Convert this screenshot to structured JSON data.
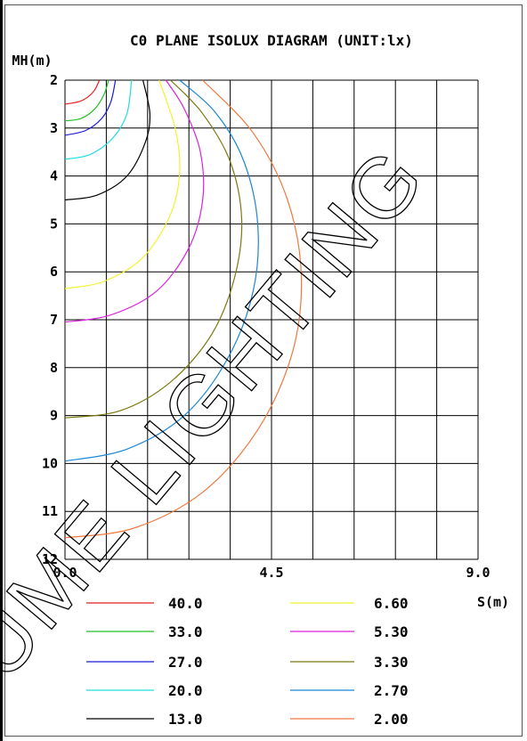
{
  "chart_data": {
    "type": "line",
    "title": "C0 PLANE ISOLUX DIAGRAM (UNIT:lx)",
    "ylabel": "MH(m)",
    "xlabel": "S(m)",
    "x_ticks": [
      "0.0",
      "4.5",
      "9.0"
    ],
    "y_ticks": [
      "2",
      "3",
      "4",
      "5",
      "6",
      "7",
      "8",
      "9",
      "10",
      "11",
      "12"
    ],
    "xlim": [
      0,
      9
    ],
    "ylim": [
      2,
      12
    ],
    "y_inverted": true,
    "grid": true,
    "legend_position": "bottom",
    "series": [
      {
        "name": "40.0",
        "color": "#e41f1f",
        "points": [
          [
            0.0,
            2.5
          ],
          [
            0.3,
            2.45
          ],
          [
            0.5,
            2.35
          ],
          [
            0.65,
            2.2
          ],
          [
            0.75,
            2.0
          ]
        ]
      },
      {
        "name": "33.0",
        "color": "#22c022",
        "points": [
          [
            0.0,
            2.85
          ],
          [
            0.35,
            2.8
          ],
          [
            0.65,
            2.6
          ],
          [
            0.85,
            2.3
          ],
          [
            0.95,
            2.0
          ]
        ]
      },
      {
        "name": "27.0",
        "color": "#1a1ad6",
        "points": [
          [
            0.0,
            3.15
          ],
          [
            0.45,
            3.05
          ],
          [
            0.8,
            2.8
          ],
          [
            1.0,
            2.45
          ],
          [
            1.1,
            2.0
          ]
        ]
      },
      {
        "name": "20.0",
        "color": "#22dede",
        "points": [
          [
            0.0,
            3.65
          ],
          [
            0.55,
            3.55
          ],
          [
            1.05,
            3.2
          ],
          [
            1.35,
            2.7
          ],
          [
            1.45,
            2.0
          ]
        ]
      },
      {
        "name": "13.0",
        "color": "#000000",
        "points": [
          [
            0.0,
            4.5
          ],
          [
            0.7,
            4.4
          ],
          [
            1.35,
            4.0
          ],
          [
            1.75,
            3.3
          ],
          [
            1.85,
            2.7
          ],
          [
            1.7,
            2.0
          ]
        ]
      },
      {
        "name": "6.60",
        "color": "#f2f233",
        "points": [
          [
            0.0,
            6.35
          ],
          [
            0.85,
            6.2
          ],
          [
            1.7,
            5.7
          ],
          [
            2.3,
            4.8
          ],
          [
            2.5,
            3.9
          ],
          [
            2.4,
            3.0
          ],
          [
            2.05,
            2.0
          ]
        ]
      },
      {
        "name": "5.30",
        "color": "#dc22dc",
        "points": [
          [
            0.0,
            7.05
          ],
          [
            1.0,
            6.9
          ],
          [
            2.0,
            6.4
          ],
          [
            2.7,
            5.5
          ],
          [
            3.0,
            4.5
          ],
          [
            2.95,
            3.5
          ],
          [
            2.6,
            2.6
          ],
          [
            2.2,
            2.0
          ]
        ]
      },
      {
        "name": "3.30",
        "color": "#7a7a10",
        "points": [
          [
            0.0,
            9.05
          ],
          [
            1.2,
            8.9
          ],
          [
            2.3,
            8.3
          ],
          [
            3.2,
            7.3
          ],
          [
            3.7,
            6.1
          ],
          [
            3.85,
            4.9
          ],
          [
            3.6,
            3.7
          ],
          [
            3.0,
            2.7
          ],
          [
            2.3,
            2.0
          ]
        ]
      },
      {
        "name": "2.70",
        "color": "#1a86d6",
        "points": [
          [
            0.0,
            9.95
          ],
          [
            1.35,
            9.7
          ],
          [
            2.6,
            9.0
          ],
          [
            3.55,
            7.8
          ],
          [
            4.1,
            6.4
          ],
          [
            4.2,
            5.0
          ],
          [
            3.9,
            3.7
          ],
          [
            3.3,
            2.7
          ],
          [
            2.5,
            2.0
          ]
        ]
      },
      {
        "name": "2.00",
        "color": "#f07840",
        "points": [
          [
            0.0,
            11.55
          ],
          [
            1.5,
            11.35
          ],
          [
            3.0,
            10.6
          ],
          [
            4.2,
            9.3
          ],
          [
            4.95,
            7.7
          ],
          [
            5.15,
            6.1
          ],
          [
            4.85,
            4.5
          ],
          [
            4.1,
            3.1
          ],
          [
            3.0,
            2.0
          ]
        ]
      }
    ]
  },
  "watermark": "LUME LIGHTING"
}
